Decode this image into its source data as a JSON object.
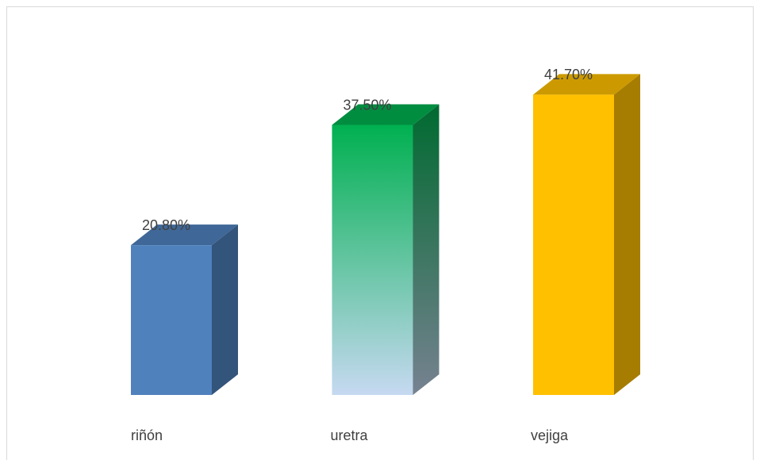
{
  "chart_data": {
    "type": "bar3d",
    "categories": [
      "riñón",
      "uretra",
      "vejiga"
    ],
    "values": [
      20.8,
      37.5,
      41.7
    ],
    "value_labels": [
      "20.80%",
      "37.50%",
      "41.70%"
    ],
    "colors": [
      "#4f81bd",
      "#00b050",
      "#ffc000"
    ],
    "gradient_to": [
      null,
      "#c6d9f1",
      null
    ]
  }
}
